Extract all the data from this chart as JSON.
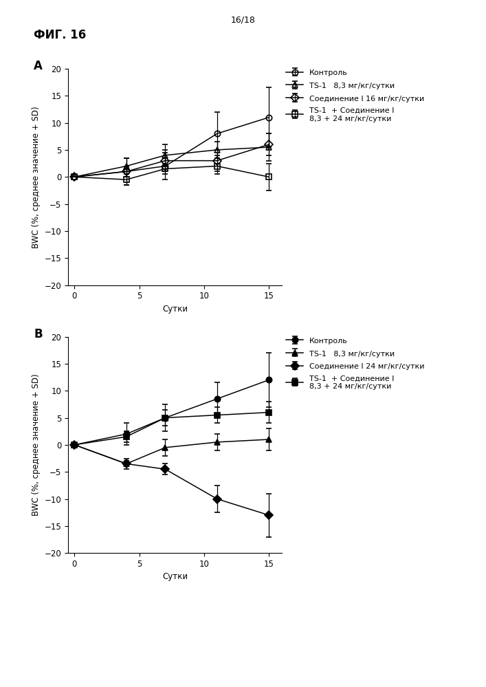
{
  "page_label": "16/18",
  "fig_label": "ФИГ. 16",
  "panel_A_label": "A",
  "panel_B_label": "B",
  "xlabel": "Сутки",
  "ylabel": "BWC (%, среднее значение + SD)",
  "x": [
    0,
    4,
    7,
    11,
    15
  ],
  "ylim": [
    -20,
    20
  ],
  "yticks": [
    -20,
    -15,
    -10,
    -5,
    0,
    5,
    10,
    15,
    20
  ],
  "xticks": [
    0,
    5,
    10,
    15
  ],
  "panelA": {
    "series": [
      {
        "label": "Контроль",
        "y": [
          0,
          1.0,
          2.0,
          8.0,
          11.0
        ],
        "yerr": [
          0,
          2.5,
          2.5,
          4.0,
          5.5
        ],
        "marker": "o",
        "filled": false
      },
      {
        "label": "TS-1   8,3 мг/кг/сутки",
        "y": [
          0,
          2.0,
          4.0,
          5.0,
          5.5
        ],
        "yerr": [
          0,
          1.5,
          2.0,
          1.5,
          2.5
        ],
        "marker": "^",
        "filled": false
      },
      {
        "label": "Соединение I 16 мг/кг/сутки",
        "y": [
          0,
          1.0,
          3.0,
          3.0,
          6.0
        ],
        "yerr": [
          0,
          1.0,
          2.0,
          2.0,
          2.0
        ],
        "marker": "D",
        "filled": false
      },
      {
        "label": "TS-1  + Соединение I\n8,3 + 24 мг/кг/сутки",
        "y": [
          0,
          -0.5,
          1.5,
          2.0,
          0.0
        ],
        "yerr": [
          0,
          1.0,
          1.0,
          1.5,
          2.5
        ],
        "marker": "s",
        "filled": false
      }
    ]
  },
  "panelB": {
    "series": [
      {
        "label": "Контроль",
        "y": [
          0,
          2.0,
          5.0,
          8.5,
          12.0
        ],
        "yerr": [
          0,
          2.0,
          2.5,
          3.0,
          5.0
        ],
        "marker": "o",
        "filled": true
      },
      {
        "label": "TS-1   8,3 мг/кг/сутки",
        "y": [
          0,
          -3.5,
          -0.5,
          0.5,
          1.0
        ],
        "yerr": [
          0,
          1.0,
          1.5,
          1.5,
          2.0
        ],
        "marker": "^",
        "filled": true
      },
      {
        "label": "Соединение I 24 мг/кг/сутки",
        "y": [
          0,
          -3.5,
          -4.5,
          -10.0,
          -13.0
        ],
        "yerr": [
          0,
          0.5,
          1.0,
          2.5,
          4.0
        ],
        "marker": "D",
        "filled": true
      },
      {
        "label": "TS-1  + Соединение I\n8,3 + 24 мг/кг/сутки",
        "y": [
          0,
          1.5,
          5.0,
          5.5,
          6.0
        ],
        "yerr": [
          0,
          1.0,
          1.5,
          1.5,
          2.0
        ],
        "marker": "s",
        "filled": true
      }
    ]
  },
  "background_color": "#ffffff",
  "font_size": 8.5,
  "label_font_size": 12,
  "fig_title_font_size": 12,
  "page_label_font_size": 9,
  "legend_font_size": 8
}
